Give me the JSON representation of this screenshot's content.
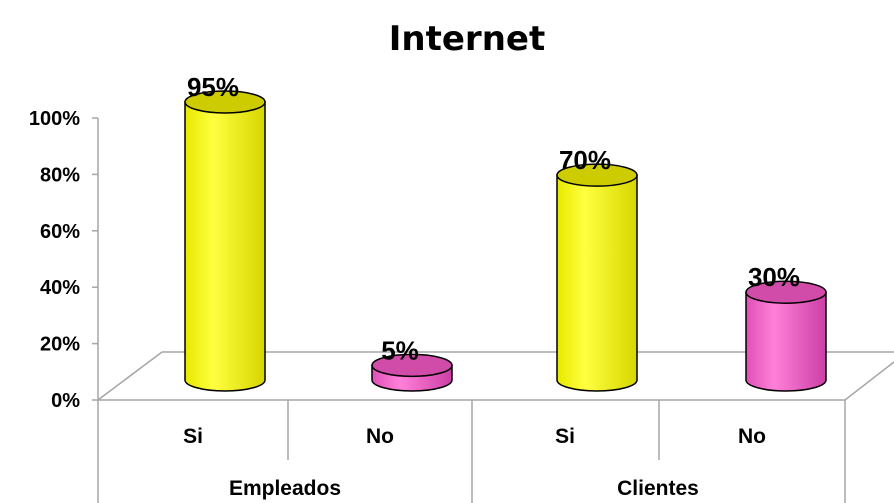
{
  "chart_data": {
    "type": "bar",
    "title": "Internet",
    "ylim": [
      0,
      100
    ],
    "y_ticks": [
      "0%",
      "20%",
      "40%",
      "60%",
      "80%",
      "100%"
    ],
    "groups": [
      "Empleados",
      "Clientes"
    ],
    "categories": [
      "Si",
      "No",
      "Si",
      "No"
    ],
    "values": [
      95,
      5,
      70,
      30
    ],
    "data_labels": [
      "95%",
      "5%",
      "70%",
      "30%"
    ],
    "colors": {
      "si": "#ffff00",
      "no": "#ff66cc"
    },
    "style": "3d-cylinder",
    "grid": false,
    "legend": "none"
  }
}
